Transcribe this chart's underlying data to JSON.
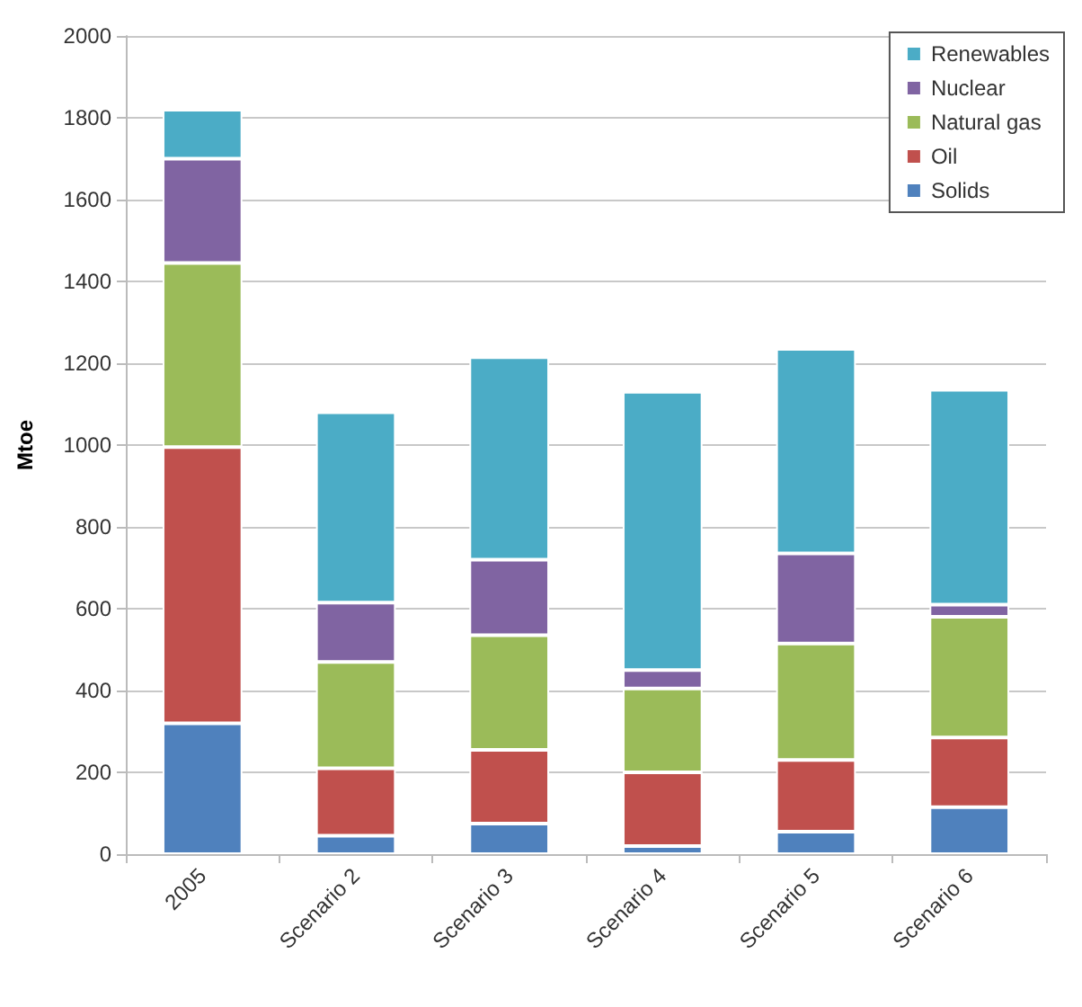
{
  "chart_data": {
    "type": "bar",
    "stacked": true,
    "ylabel": "Mtoe",
    "categories": [
      "2005",
      "Scenario 2",
      "Scenario 3",
      "Scenario 4",
      "Scenario 5",
      "Scenario 6"
    ],
    "series": [
      {
        "name": "Solids",
        "color": "#4f81bd",
        "values": [
          320,
          45,
          75,
          20,
          55,
          115
        ]
      },
      {
        "name": "Oil",
        "color": "#c0504d",
        "values": [
          675,
          165,
          180,
          180,
          175,
          170
        ]
      },
      {
        "name": "Natural gas",
        "color": "#9bbb59",
        "values": [
          450,
          260,
          280,
          205,
          285,
          295
        ]
      },
      {
        "name": "Nuclear",
        "color": "#8064a2",
        "values": [
          255,
          145,
          185,
          45,
          220,
          30
        ]
      },
      {
        "name": "Renewables",
        "color": "#4bacc6",
        "values": [
          120,
          465,
          495,
          680,
          500,
          525
        ]
      }
    ],
    "ylim": [
      0,
      2000
    ],
    "yticks": [
      0,
      200,
      400,
      600,
      800,
      1000,
      1200,
      1400,
      1600,
      1800,
      2000
    ],
    "grid": "y",
    "legend": "top right"
  }
}
